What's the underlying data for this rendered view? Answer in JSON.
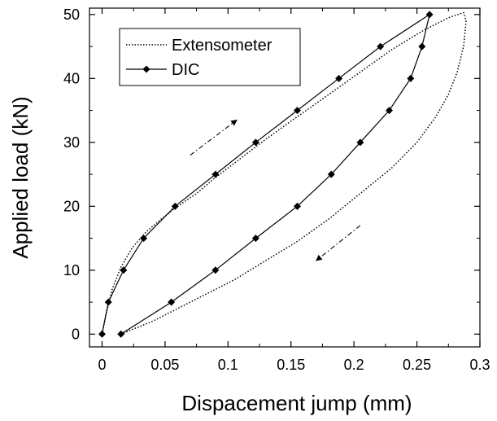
{
  "chart_data": {
    "type": "line",
    "title": "",
    "xlabel": "Dispacement jump (mm)",
    "ylabel": "Applied load (kN)",
    "xlim": [
      -0.01,
      0.3
    ],
    "ylim": [
      -2,
      51
    ],
    "x_ticks": [
      0,
      0.05,
      0.1,
      0.15,
      0.2,
      0.25,
      0.3
    ],
    "x_tick_labels": [
      "0",
      "0.05",
      "0.1",
      "0.15",
      "0.2",
      "0.25",
      "0.3"
    ],
    "y_ticks": [
      0,
      10,
      20,
      30,
      40,
      50
    ],
    "y_tick_labels": [
      "0",
      "10",
      "20",
      "30",
      "40",
      "50"
    ],
    "grid": false,
    "legend_position": "top-left",
    "series": [
      {
        "name": "Extensometer",
        "style": "dotted",
        "marker": "none",
        "color": "#000000",
        "x": [
          0,
          0.003,
          0.008,
          0.015,
          0.024,
          0.035,
          0.047,
          0.06,
          0.075,
          0.09,
          0.11,
          0.13,
          0.155,
          0.18,
          0.205,
          0.23,
          0.255,
          0.275,
          0.287,
          0.289,
          0.287,
          0.282,
          0.275,
          0.265,
          0.25,
          0.23,
          0.205,
          0.18,
          0.155,
          0.13,
          0.105,
          0.08,
          0.06,
          0.04,
          0.025,
          0.015
        ],
        "y": [
          0,
          3,
          7,
          10.5,
          13.5,
          16,
          18,
          20,
          22,
          24.5,
          27.5,
          30.5,
          34,
          37.5,
          41,
          44.5,
          47.5,
          49.5,
          50.3,
          49,
          45,
          41,
          37.5,
          34,
          30,
          26,
          22,
          18,
          14.5,
          11.5,
          8.5,
          6,
          4,
          2,
          0.8,
          0
        ]
      },
      {
        "name": "DIC",
        "style": "solid",
        "marker": "diamond",
        "color": "#000000",
        "x": [
          0,
          0.005,
          0.017,
          0.033,
          0.058,
          0.09,
          0.122,
          0.155,
          0.188,
          0.221,
          0.26,
          0.254,
          0.245,
          0.228,
          0.205,
          0.182,
          0.155,
          0.122,
          0.09,
          0.055,
          0.015
        ],
        "y": [
          0,
          5,
          10,
          15,
          20,
          25,
          30,
          35,
          40,
          45,
          50,
          45,
          40,
          35,
          30,
          25,
          20,
          15,
          10,
          5,
          0
        ]
      }
    ],
    "annotations": [
      {
        "type": "arrow",
        "style": "dash-dot",
        "from": [
          0.07,
          28
        ],
        "to": [
          0.107,
          33.5
        ]
      },
      {
        "type": "arrow",
        "style": "dash-dot",
        "from": [
          0.205,
          17
        ],
        "to": [
          0.17,
          11.5
        ]
      }
    ]
  }
}
